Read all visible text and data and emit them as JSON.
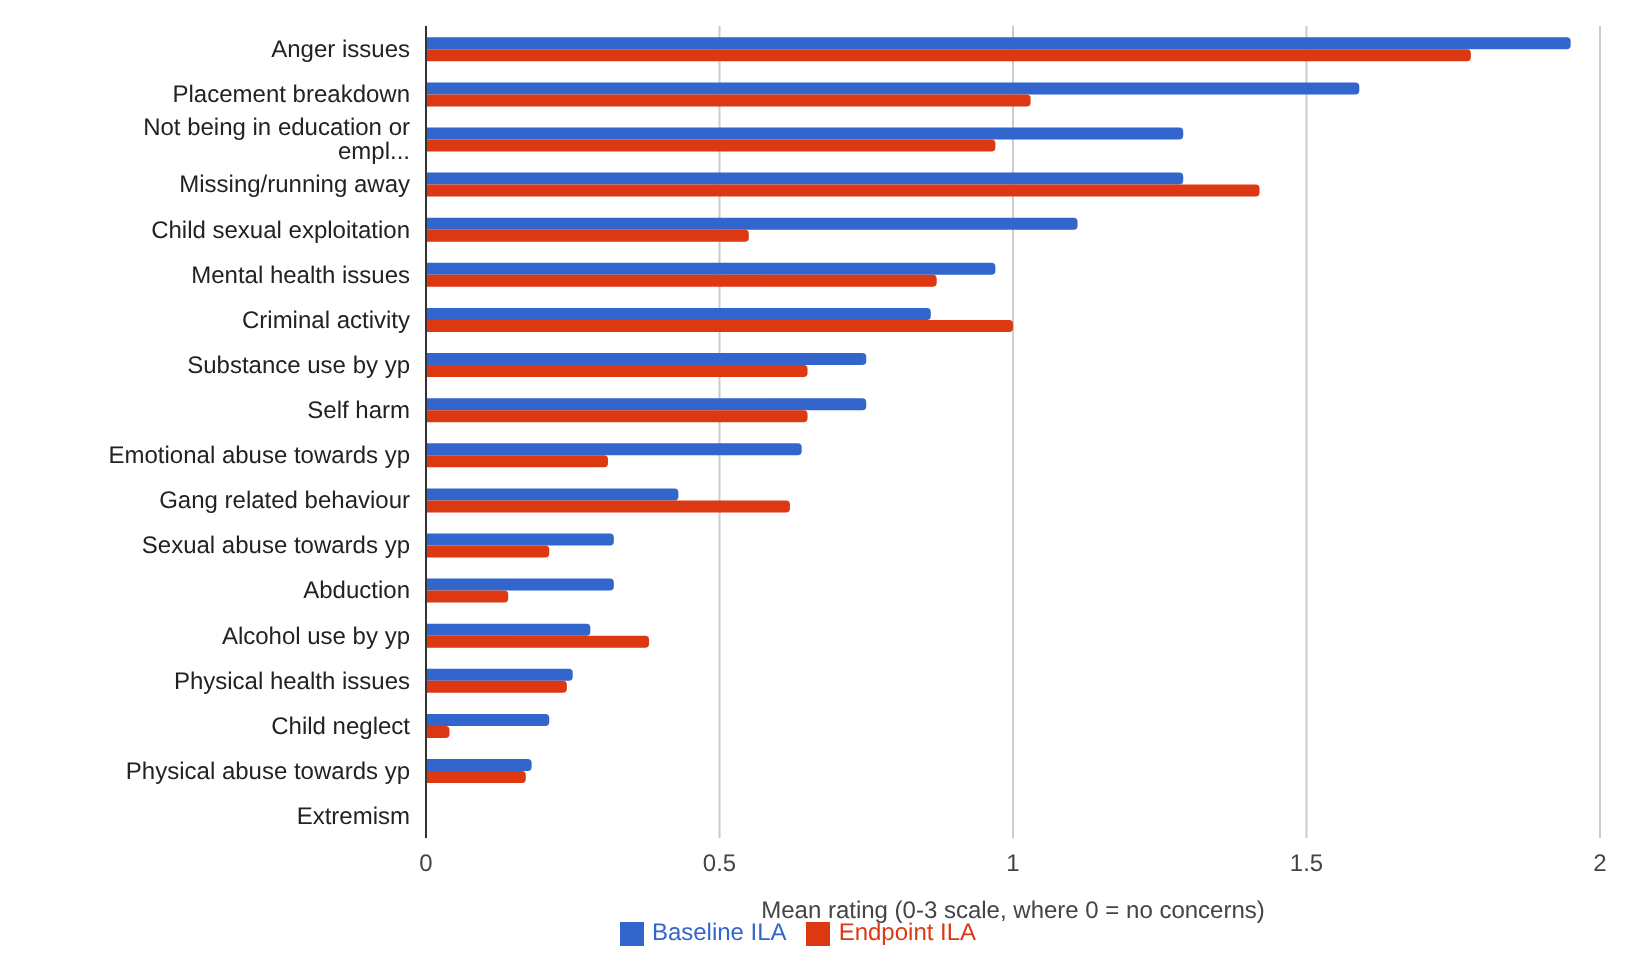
{
  "chart_data": {
    "type": "bar",
    "orientation": "horizontal",
    "xlabel": "Mean rating (0-3 scale, where 0 = no concerns)",
    "categories": [
      "Anger issues",
      "Placement breakdown",
      "Not being in education or empl...",
      "Missing/running away",
      "Child sexual exploitation",
      "Mental health issues",
      "Criminal activity",
      "Substance use by yp",
      "Self harm",
      "Emotional abuse towards yp",
      "Gang related behaviour",
      "Sexual abuse towards yp",
      "Abduction",
      "Alcohol use by yp",
      "Physical health issues",
      "Child neglect",
      "Physical abuse towards yp",
      "Extremism"
    ],
    "series": [
      {
        "name": "Baseline ILA",
        "color": "#3366cc",
        "values": [
          1.95,
          1.59,
          1.29,
          1.29,
          1.11,
          0.97,
          0.86,
          0.75,
          0.75,
          0.64,
          0.43,
          0.32,
          0.32,
          0.28,
          0.25,
          0.21,
          0.18,
          0
        ]
      },
      {
        "name": "Endpoint ILA",
        "color": "#dc3912",
        "values": [
          1.78,
          1.03,
          0.97,
          1.42,
          0.55,
          0.87,
          1.0,
          0.65,
          0.65,
          0.31,
          0.62,
          0.21,
          0.14,
          0.38,
          0.24,
          0.04,
          0.17,
          0
        ]
      }
    ],
    "xlim": [
      0,
      2
    ],
    "xticks": [
      0,
      0.5,
      1,
      1.5,
      2
    ],
    "grid": "x",
    "legend": "bottom"
  }
}
